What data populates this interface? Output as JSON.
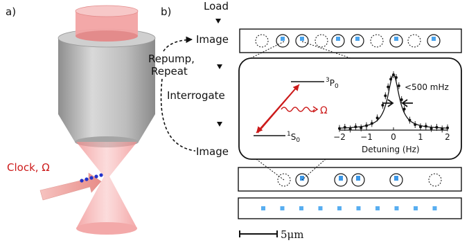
{
  "panels": {
    "a": {
      "label": "a)",
      "clock_label": "Clock, Ω"
    },
    "b": {
      "label": "b)"
    }
  },
  "sequence": {
    "load": "Load",
    "image_1": "Image",
    "interrogate": "Interrogate",
    "image_2": "Image",
    "repump_line1": "Repump,",
    "repump_line2": "Repeat"
  },
  "level_diagram": {
    "upper_base": "3",
    "upper_sub": "P",
    "upper_idx": "0",
    "lower_base": "1",
    "lower_sub": "S",
    "lower_idx": "0",
    "omega": "Ω"
  },
  "spectrum": {
    "linewidth": "<500 mHz",
    "xlabel": "Detuning (Hz)",
    "ticks": [
      "−2",
      "−1",
      "0",
      "1",
      "2"
    ]
  },
  "scale_bar": {
    "label": "5μm"
  },
  "colors": {
    "arrow_red": "#cc1a1a",
    "beam_pink": "#f4a6a6",
    "atom_blue": "#2a8de0",
    "objective_gray": "#b9b9b9"
  },
  "chart_data": {
    "type": "scatter",
    "x": [
      -2.0,
      -1.8,
      -1.6,
      -1.4,
      -1.2,
      -1.0,
      -0.8,
      -0.6,
      -0.4,
      -0.3,
      -0.2,
      -0.1,
      0.0,
      0.1,
      0.2,
      0.3,
      0.4,
      0.6,
      0.8,
      1.0,
      1.2,
      1.4,
      1.6,
      1.8,
      2.0
    ],
    "values": [
      0.03,
      0.05,
      0.02,
      0.06,
      0.04,
      0.08,
      0.12,
      0.22,
      0.45,
      0.62,
      0.78,
      0.92,
      1.0,
      0.95,
      0.8,
      0.55,
      0.38,
      0.18,
      0.1,
      0.06,
      0.07,
      0.03,
      0.05,
      0.02,
      0.04
    ],
    "xlabel": "Detuning (Hz)",
    "xlim": [
      -2,
      2
    ],
    "ylim": [
      0,
      1.1
    ]
  }
}
